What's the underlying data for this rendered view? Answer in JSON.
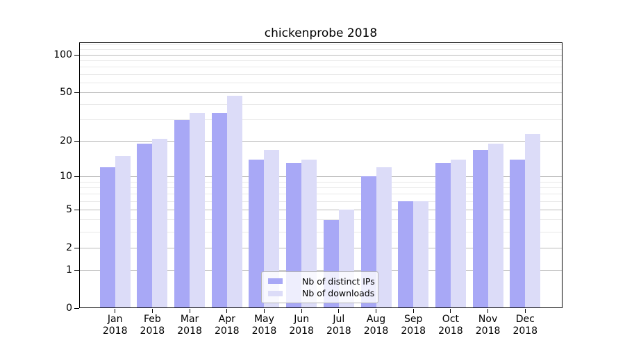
{
  "chart_data": {
    "type": "bar",
    "title": "chickenprobe 2018",
    "categories": [
      "Jan",
      "Feb",
      "Mar",
      "Apr",
      "May",
      "Jun",
      "Jul",
      "Aug",
      "Sep",
      "Oct",
      "Nov",
      "Dec"
    ],
    "year": "2018",
    "series": [
      {
        "name": "Nb of distinct IPs",
        "color": "#a8a8f6",
        "values": [
          12,
          19,
          30,
          34,
          14,
          13,
          4,
          10,
          6,
          13,
          17,
          14
        ]
      },
      {
        "name": "Nb of downloads",
        "color": "#dcdcf8",
        "values": [
          15,
          21,
          34,
          47,
          17,
          14,
          5,
          12,
          6,
          14,
          19,
          23
        ]
      }
    ],
    "yscale": "log10(1+y)",
    "yticks": [
      0,
      1,
      2,
      5,
      10,
      20,
      50,
      100
    ],
    "yticks_minor": [
      3,
      4,
      6,
      7,
      8,
      9,
      30,
      40,
      60,
      70,
      80,
      90,
      110,
      120
    ],
    "ylim": [
      0,
      126
    ],
    "xlabel": "",
    "ylabel": "",
    "grid": true,
    "legend_position": "bottom-center",
    "background_color": "#ffffff",
    "major_grid_color": "#b9b9b9",
    "minor_grid_color": "#e8e8e8"
  }
}
